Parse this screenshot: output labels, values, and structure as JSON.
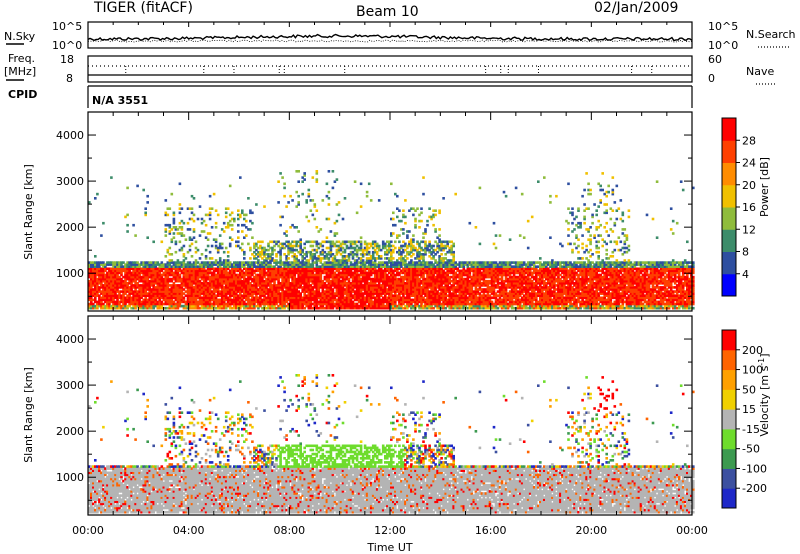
{
  "header": {
    "radar": "TIGER (fitACF)",
    "beam": "Beam 10",
    "date": "02/Jan/2009"
  },
  "side_labels": {
    "nsky": "N.Sky",
    "nsky_top": "10^5",
    "nsky_bottom": "10^0",
    "nsearch": "N.Search",
    "nsearch_top": "10^5",
    "nsearch_bottom": "10^0",
    "freq_line1": "Freq.",
    "freq_line2": "[MHz]",
    "freq_top": "18",
    "freq_bottom": "8",
    "nave_top": "60",
    "nave_bottom": "0",
    "nave": "Nave",
    "cpid": "CPID",
    "cpid_value": "N/A 3551"
  },
  "chart_data": [
    {
      "type": "heatmap",
      "name": "power",
      "ylabel": "Slant Range [km]",
      "xlabel": "",
      "ylim": [
        180,
        4500
      ],
      "xlim": [
        0,
        24
      ],
      "yticks": [
        "1000",
        "2000",
        "3000",
        "4000"
      ],
      "colorbar": {
        "label": "Power [dB]",
        "ticks": [
          "4",
          "8",
          "12",
          "16",
          "20",
          "24",
          "28"
        ],
        "colors": [
          "#0000ff",
          "#2e4fa0",
          "#3c8c6a",
          "#8fbc3c",
          "#f0c000",
          "#ff8c00",
          "#ff4000",
          "#ff0000"
        ]
      }
    },
    {
      "type": "heatmap",
      "name": "velocity",
      "ylabel": "Slant Range [km]",
      "xlabel": "Time UT",
      "ylim": [
        180,
        4500
      ],
      "xlim": [
        0,
        24
      ],
      "yticks": [
        "1000",
        "2000",
        "3000",
        "4000"
      ],
      "xticks": [
        "00:00",
        "04:00",
        "08:00",
        "12:00",
        "16:00",
        "20:00",
        "00:00"
      ],
      "colorbar": {
        "label": "Velocity [m s-1]",
        "ticks": [
          "200",
          "100",
          "50",
          "15",
          "-15",
          "-50",
          "-100",
          "-200"
        ],
        "colors": [
          "#1e28c8",
          "#3c50a0",
          "#3c9a50",
          "#6edc2c",
          "#b4b4b4",
          "#f0d000",
          "#ffa000",
          "#ff6400",
          "#ff0000"
        ]
      }
    }
  ]
}
